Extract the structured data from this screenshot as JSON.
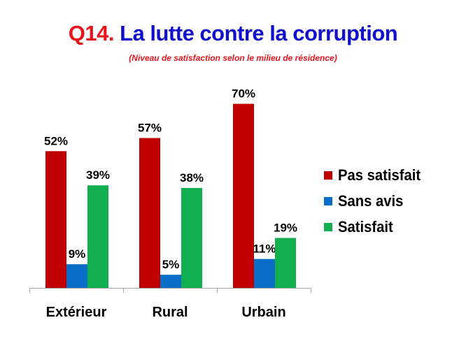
{
  "header": {
    "title_prefix": "Q14.",
    "title_main": " La lutte contre la corruption",
    "subtitle": "(Niveau de satisfaction selon  le milieu de résidence)"
  },
  "chart_data": {
    "type": "bar",
    "categories": [
      "Extérieur",
      "Rural",
      "Urbain"
    ],
    "series": [
      {
        "name": "Pas satisfait",
        "color": "#c00000",
        "values": [
          52,
          57,
          70
        ],
        "labels": [
          "52%",
          "57%",
          "70%"
        ]
      },
      {
        "name": "Sans avis",
        "color": "#0a6ec8",
        "values": [
          9,
          5,
          11
        ],
        "labels": [
          "9%",
          "5%",
          "11%"
        ]
      },
      {
        "name": "Satisfait",
        "color": "#10b050",
        "values": [
          39,
          38,
          19
        ],
        "labels": [
          "39%",
          "38%",
          "19%"
        ]
      }
    ],
    "ylim": [
      0,
      80
    ],
    "legend_position": "right",
    "grid": false
  }
}
